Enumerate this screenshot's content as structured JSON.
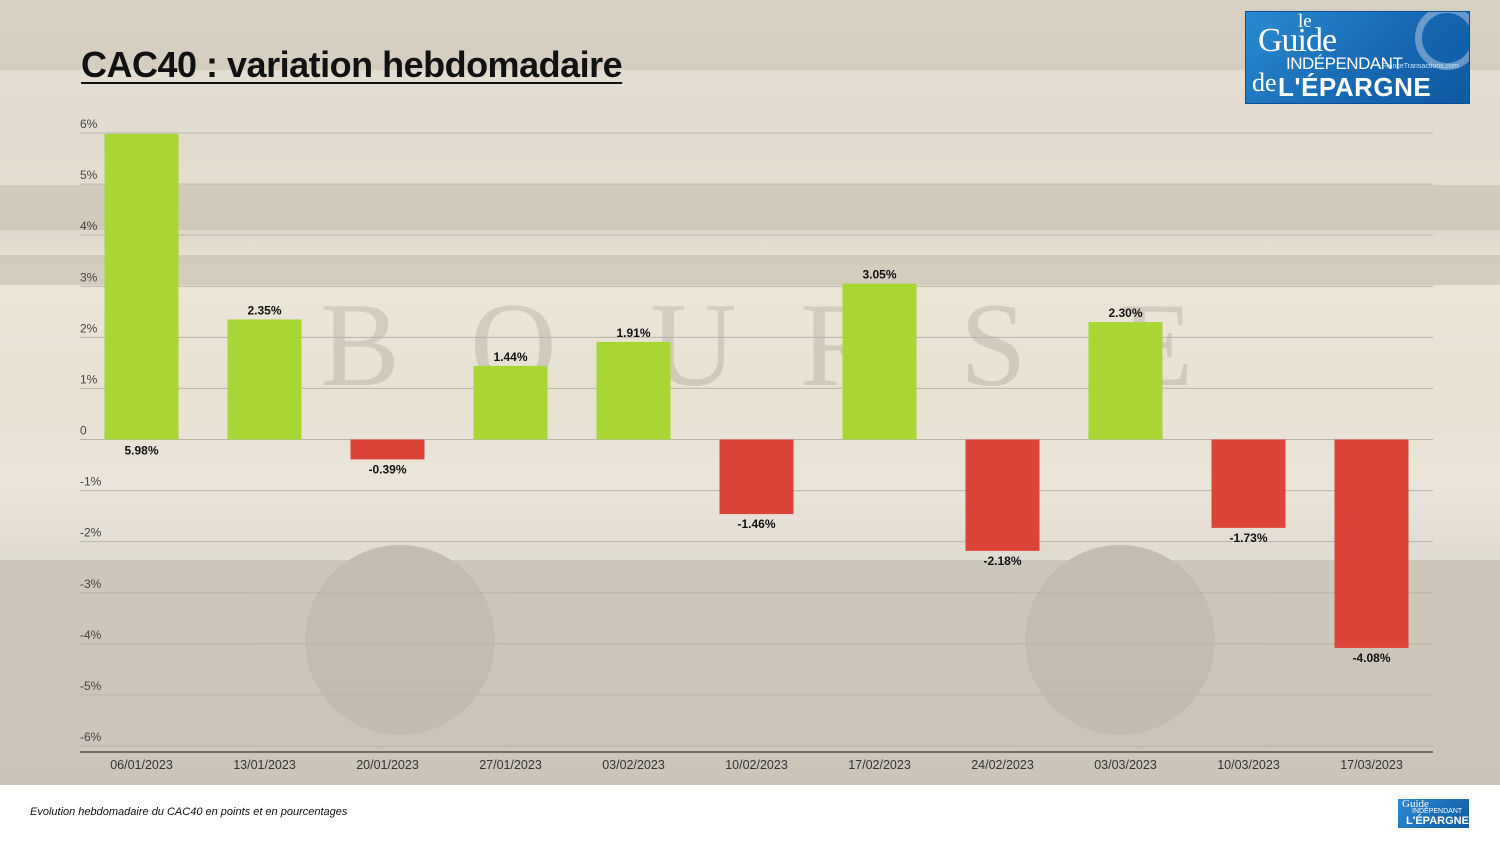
{
  "title": "CAC40 : variation hebdomadaire",
  "caption": "Evolution hebdomadaire du CAC40 en points et en pourcentages",
  "logo": {
    "line1": "le",
    "line2": "Guide",
    "line3": "INDÉPENDANT",
    "line4": "de",
    "line5": "L'ÉPARGNE",
    "tagline": "FranceTransactions.com"
  },
  "colors": {
    "positive": "#a7d635",
    "negative": "#db4437",
    "grid": "#b9b4aa",
    "axis": "#555555"
  },
  "chart_data": {
    "type": "bar",
    "title": "CAC40 : variation hebdomadaire",
    "categories": [
      "06/01/2023",
      "13/01/2023",
      "20/01/2023",
      "27/01/2023",
      "03/02/2023",
      "10/02/2023",
      "17/02/2023",
      "24/02/2023",
      "03/03/2023",
      "10/03/2023",
      "17/03/2023"
    ],
    "values": [
      5.98,
      2.35,
      -0.39,
      1.44,
      1.91,
      -1.46,
      3.05,
      -2.18,
      2.3,
      -1.73,
      -4.08
    ],
    "value_labels": [
      "5.98%",
      "2.35%",
      "-0.39%",
      "1.44%",
      "1.91%",
      "-1.46%",
      "3.05%",
      "-2.18%",
      "2.30%",
      "-1.73%",
      "-4.08%"
    ],
    "y_ticks": [
      6,
      5,
      4,
      3,
      2,
      1,
      0,
      -1,
      -2,
      -3,
      -4,
      -5,
      -6
    ],
    "y_tick_labels": [
      "6%",
      "5%",
      "4%",
      "3%",
      "2%",
      "1%",
      "0",
      "-1%",
      "-2%",
      "-3%",
      "-4%",
      "-5%",
      "-6%"
    ],
    "ylim": [
      -6,
      6
    ],
    "grid": true,
    "legend": false
  }
}
